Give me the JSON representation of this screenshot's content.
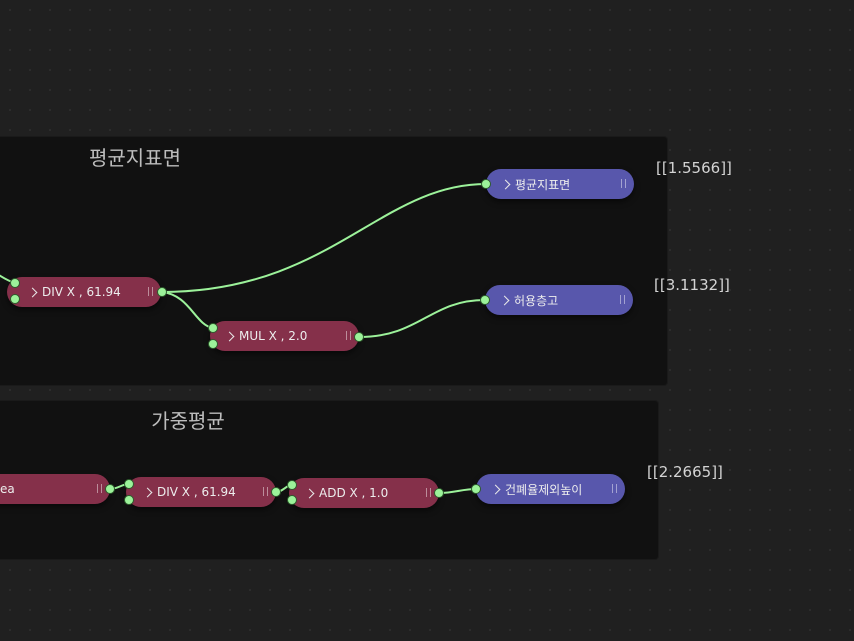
{
  "frames": {
    "upper": {
      "title": "평균지표면"
    },
    "lower": {
      "title": "가중평균"
    }
  },
  "nodes": {
    "div_upper": {
      "label": "DIV X ,  61.94"
    },
    "mul_upper": {
      "label": "MUL X ,  2.0"
    },
    "out_avg": {
      "label": "평균지표면"
    },
    "out_allow": {
      "label": "허용층고"
    },
    "area_lower": {
      "label": "ea"
    },
    "div_lower": {
      "label": "DIV X ,  61.94"
    },
    "add_lower": {
      "label": "ADD X ,  1.0"
    },
    "out_height": {
      "label": "건폐율제외높이"
    }
  },
  "values": {
    "avg": "[[1.5566]]",
    "allow": "[[3.1132]]",
    "height": "[[2.2665]]"
  },
  "colors": {
    "canvas": "#202020",
    "frame": "#111111",
    "math_node": "#85304a",
    "output_node": "#5857ac",
    "socket": "#9cf29a",
    "wire": "#9cf29a"
  }
}
